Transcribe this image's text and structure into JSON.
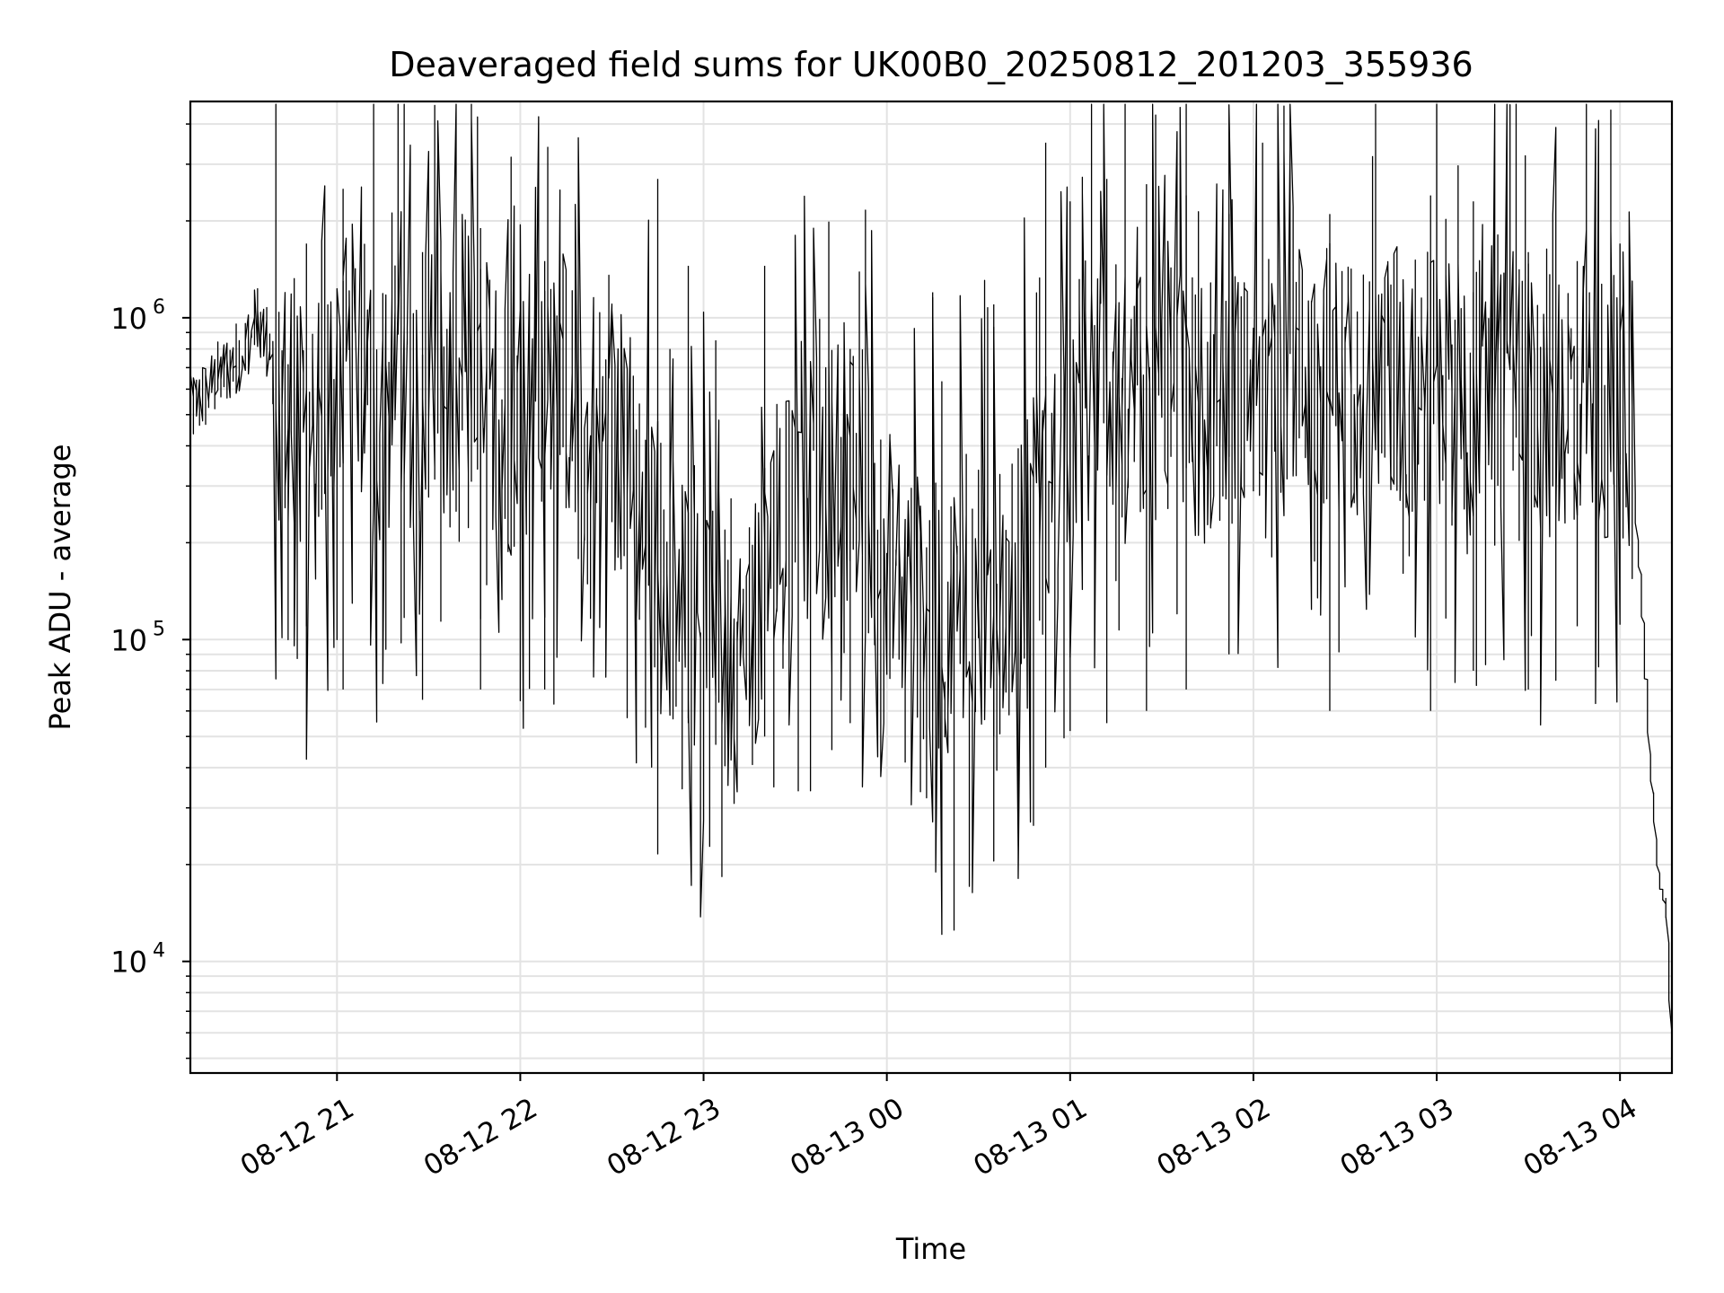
{
  "chart_data": {
    "type": "line",
    "title": "Deaveraged field sums for UK00B0_20250812_201203_355936",
    "xlabel": "Time",
    "ylabel": "Peak ADU - average",
    "yscale": "log",
    "grid": true,
    "legend": "none",
    "xlim": [
      "2025-08-12 20:12",
      "2025-08-13 04:17"
    ],
    "ylim": [
      4500,
      4700000
    ],
    "x_ticks": [
      "08-12 21",
      "08-12 22",
      "08-12 23",
      "08-13 00",
      "08-13 01",
      "08-13 02",
      "08-13 03",
      "08-13 04"
    ],
    "y_ticks": [
      {
        "base": "10",
        "exp": "4",
        "value": 10000
      },
      {
        "base": "10",
        "exp": "5",
        "value": 100000
      },
      {
        "base": "10",
        "exp": "6",
        "value": 1000000
      }
    ],
    "series": [
      {
        "color": "#000000",
        "x": [
          "2025-08-12 20:12",
          "2025-08-12 20:20",
          "2025-08-12 20:30",
          "2025-08-12 20:35",
          "2025-08-12 20:40",
          "2025-08-12 20:45",
          "2025-08-12 20:50",
          "2025-08-12 20:55",
          "2025-08-12 21:00",
          "2025-08-12 21:05",
          "2025-08-12 21:10",
          "2025-08-12 21:15",
          "2025-08-12 21:20",
          "2025-08-12 21:25",
          "2025-08-12 21:30",
          "2025-08-12 21:35",
          "2025-08-12 21:40",
          "2025-08-12 21:45",
          "2025-08-12 21:50",
          "2025-08-12 21:55",
          "2025-08-12 22:00",
          "2025-08-12 22:05",
          "2025-08-12 22:10",
          "2025-08-12 22:15",
          "2025-08-12 22:20",
          "2025-08-12 22:25",
          "2025-08-12 22:30",
          "2025-08-12 22:35",
          "2025-08-12 22:40",
          "2025-08-12 22:45",
          "2025-08-12 22:50",
          "2025-08-12 22:55",
          "2025-08-12 23:00",
          "2025-08-12 23:05",
          "2025-08-12 23:10",
          "2025-08-12 23:15",
          "2025-08-12 23:20",
          "2025-08-12 23:25",
          "2025-08-12 23:30",
          "2025-08-12 23:35",
          "2025-08-12 23:40",
          "2025-08-12 23:45",
          "2025-08-12 23:50",
          "2025-08-12 23:55",
          "2025-08-13 00:00",
          "2025-08-13 00:05",
          "2025-08-13 00:10",
          "2025-08-13 00:15",
          "2025-08-13 00:20",
          "2025-08-13 00:25",
          "2025-08-13 00:30",
          "2025-08-13 00:35",
          "2025-08-13 00:40",
          "2025-08-13 00:45",
          "2025-08-13 00:50",
          "2025-08-13 00:55",
          "2025-08-13 01:00",
          "2025-08-13 01:05",
          "2025-08-13 01:10",
          "2025-08-13 01:15",
          "2025-08-13 01:20",
          "2025-08-13 01:25",
          "2025-08-13 01:30",
          "2025-08-13 01:35",
          "2025-08-13 01:40",
          "2025-08-13 01:45",
          "2025-08-13 01:50",
          "2025-08-13 01:55",
          "2025-08-13 02:00",
          "2025-08-13 02:05",
          "2025-08-13 02:10",
          "2025-08-13 02:15",
          "2025-08-13 02:20",
          "2025-08-13 02:25",
          "2025-08-13 02:30",
          "2025-08-13 02:35",
          "2025-08-13 02:40",
          "2025-08-13 02:45",
          "2025-08-13 02:50",
          "2025-08-13 02:55",
          "2025-08-13 03:00",
          "2025-08-13 03:05",
          "2025-08-13 03:10",
          "2025-08-13 03:15",
          "2025-08-13 03:20",
          "2025-08-13 03:25",
          "2025-08-13 03:30",
          "2025-08-13 03:35",
          "2025-08-13 03:40",
          "2025-08-13 03:45",
          "2025-08-13 03:50",
          "2025-08-13 03:55",
          "2025-08-13 04:00",
          "2025-08-13 04:03",
          "2025-08-13 04:05",
          "2025-08-13 04:08",
          "2025-08-13 04:10",
          "2025-08-13 04:12",
          "2025-08-13 04:14",
          "2025-08-13 04:16",
          "2025-08-13 04:17"
        ],
        "y": [
          500000,
          620000,
          800000,
          1000000,
          650000,
          480000,
          420000,
          350000,
          700000,
          800000,
          650000,
          500000,
          600000,
          550000,
          700000,
          650000,
          500000,
          550000,
          600000,
          450000,
          500000,
          700000,
          600000,
          650000,
          400000,
          300000,
          500000,
          400000,
          250000,
          200000,
          150000,
          130000,
          110000,
          90000,
          80000,
          90000,
          150000,
          200000,
          250000,
          300000,
          280000,
          350000,
          300000,
          250000,
          200000,
          150000,
          130000,
          120000,
          110000,
          150000,
          130000,
          150000,
          130000,
          200000,
          250000,
          300000,
          400000,
          600000,
          650000,
          600000,
          500000,
          550000,
          500000,
          600000,
          550000,
          500000,
          600000,
          550000,
          650000,
          700000,
          750000,
          700000,
          650000,
          700000,
          600000,
          650000,
          700000,
          600000,
          550000,
          650000,
          700000,
          600000,
          500000,
          600000,
          700000,
          650000,
          600000,
          500000,
          550000,
          600000,
          650000,
          550000,
          600000,
          500000,
          300000,
          120000,
          50000,
          25000,
          17000,
          14000,
          6000
        ],
        "spikes": [
          [
            "2025-08-12 20:50",
            1700000,
            110000
          ],
          [
            "2025-08-12 21:02",
            1300000,
            70000
          ],
          [
            "2025-08-12 21:28",
            1600000,
            65000
          ],
          [
            "2025-08-12 21:47",
            1900000,
            70000
          ],
          [
            "2025-08-12 22:08",
            1500000,
            70000
          ],
          [
            "2025-08-12 22:45",
            2700000,
            60000
          ],
          [
            "2025-08-12 22:55",
            1450000,
            55000
          ],
          [
            "2025-08-12 23:20",
            1450000,
            50000
          ],
          [
            "2025-08-12 23:48",
            800000,
            55000
          ],
          [
            "2025-08-13 00:15",
            1200000,
            60000
          ],
          [
            "2025-08-13 00:35",
            1100000,
            50000
          ],
          [
            "2025-08-13 00:52",
            3500000,
            40000
          ],
          [
            "2025-08-13 01:00",
            2300000,
            52000
          ],
          [
            "2025-08-13 01:12",
            2700000,
            55000
          ],
          [
            "2025-08-13 01:25",
            2600000,
            60000
          ],
          [
            "2025-08-13 01:38",
            2400000,
            70000
          ],
          [
            "2025-08-13 01:52",
            2100000,
            90000
          ],
          [
            "2025-08-13 02:25",
            2100000,
            60000
          ],
          [
            "2025-08-13 02:58",
            2400000,
            60000
          ],
          [
            "2025-08-13 03:12",
            2300000,
            80000
          ],
          [
            "2025-08-13 03:30",
            1600000,
            70000
          ],
          [
            "2025-08-13 03:46",
            1500000,
            110000
          ],
          [
            "2025-08-13 04:00",
            1700000,
            350000
          ]
        ]
      }
    ]
  }
}
